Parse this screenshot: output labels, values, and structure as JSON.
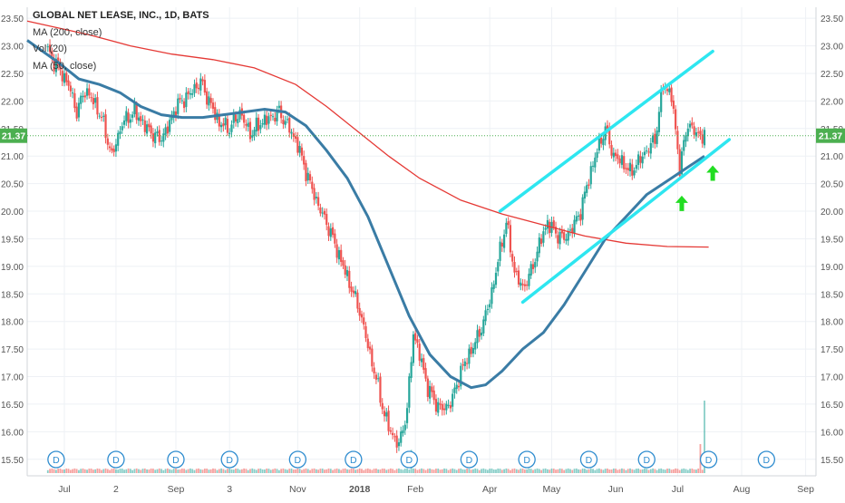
{
  "chart_data": {
    "type": "candlestick",
    "symbol_title": "GLOBAL NET LEASE, INC., 1D, BATS",
    "indicators": [
      "MA (200, close)",
      "Vol (20)",
      "MA (50, close)"
    ],
    "last_price": "21.37",
    "price_ticks": [
      "15.50",
      "16.00",
      "16.50",
      "17.00",
      "17.50",
      "18.00",
      "18.50",
      "19.00",
      "19.50",
      "20.00",
      "20.50",
      "21.00",
      "21.50",
      "22.00",
      "22.50",
      "23.00",
      "23.50"
    ],
    "time_labels": [
      "Jul",
      "2",
      "Sep",
      "3",
      "Nov",
      "2018",
      "Feb",
      "Apr",
      "May",
      "Jun",
      "Jul",
      "Aug",
      "Sep"
    ],
    "time_label_positions_days": [
      8,
      33,
      62,
      88,
      121,
      151,
      178,
      214,
      244,
      275,
      305,
      336,
      367
    ],
    "ylim": [
      15.2,
      23.7
    ],
    "xlim_days": [
      -10,
      372
    ],
    "price_anchors": [
      [
        0,
        22.9
      ],
      [
        5,
        22.6
      ],
      [
        10,
        22.3
      ],
      [
        14,
        21.8
      ],
      [
        18,
        22.2
      ],
      [
        22,
        22.0
      ],
      [
        26,
        21.7
      ],
      [
        31,
        21.0
      ],
      [
        36,
        21.6
      ],
      [
        42,
        21.8
      ],
      [
        48,
        21.5
      ],
      [
        54,
        21.3
      ],
      [
        58,
        21.5
      ],
      [
        62,
        21.9
      ],
      [
        68,
        22.1
      ],
      [
        74,
        22.35
      ],
      [
        78,
        22.0
      ],
      [
        83,
        21.6
      ],
      [
        88,
        21.5
      ],
      [
        93,
        21.8
      ],
      [
        98,
        21.4
      ],
      [
        103,
        21.6
      ],
      [
        108,
        21.7
      ],
      [
        112,
        21.8
      ],
      [
        117,
        21.5
      ],
      [
        121,
        21.2
      ],
      [
        126,
        20.6
      ],
      [
        131,
        20.1
      ],
      [
        136,
        19.7
      ],
      [
        141,
        19.2
      ],
      [
        146,
        18.7
      ],
      [
        151,
        18.2
      ],
      [
        156,
        17.4
      ],
      [
        160,
        16.8
      ],
      [
        163,
        16.3
      ],
      [
        166,
        16.0
      ],
      [
        170,
        15.75
      ],
      [
        174,
        16.4
      ],
      [
        177,
        17.8
      ],
      [
        180,
        17.4
      ],
      [
        184,
        16.8
      ],
      [
        188,
        16.5
      ],
      [
        192,
        16.4
      ],
      [
        196,
        16.6
      ],
      [
        200,
        17.1
      ],
      [
        204,
        17.4
      ],
      [
        208,
        17.7
      ],
      [
        212,
        18.1
      ],
      [
        216,
        18.7
      ],
      [
        219,
        19.3
      ],
      [
        222,
        19.8
      ],
      [
        226,
        18.9
      ],
      [
        230,
        18.6
      ],
      [
        234,
        18.9
      ],
      [
        238,
        19.4
      ],
      [
        242,
        19.8
      ],
      [
        246,
        19.6
      ],
      [
        250,
        19.5
      ],
      [
        254,
        19.7
      ],
      [
        258,
        20.0
      ],
      [
        262,
        20.6
      ],
      [
        266,
        21.1
      ],
      [
        270,
        21.5
      ],
      [
        274,
        21.0
      ],
      [
        278,
        20.9
      ],
      [
        282,
        20.7
      ],
      [
        286,
        20.9
      ],
      [
        290,
        21.1
      ],
      [
        294,
        21.3
      ],
      [
        298,
        22.3
      ],
      [
        302,
        22.1
      ],
      [
        306,
        20.8
      ],
      [
        310,
        21.6
      ],
      [
        314,
        21.4
      ],
      [
        318,
        21.37
      ]
    ],
    "ma200": [
      [
        -10,
        23.45
      ],
      [
        20,
        23.2
      ],
      [
        40,
        23.0
      ],
      [
        60,
        22.85
      ],
      [
        80,
        22.75
      ],
      [
        100,
        22.6
      ],
      [
        120,
        22.3
      ],
      [
        135,
        21.9
      ],
      [
        150,
        21.45
      ],
      [
        165,
        21.0
      ],
      [
        180,
        20.6
      ],
      [
        200,
        20.2
      ],
      [
        220,
        19.95
      ],
      [
        240,
        19.75
      ],
      [
        260,
        19.55
      ],
      [
        280,
        19.42
      ],
      [
        300,
        19.36
      ],
      [
        320,
        19.35
      ]
    ],
    "ma50": [
      [
        -10,
        23.1
      ],
      [
        5,
        22.7
      ],
      [
        15,
        22.4
      ],
      [
        25,
        22.3
      ],
      [
        35,
        22.15
      ],
      [
        45,
        21.9
      ],
      [
        55,
        21.75
      ],
      [
        65,
        21.7
      ],
      [
        75,
        21.7
      ],
      [
        85,
        21.75
      ],
      [
        95,
        21.8
      ],
      [
        105,
        21.85
      ],
      [
        115,
        21.8
      ],
      [
        125,
        21.55
      ],
      [
        135,
        21.1
      ],
      [
        145,
        20.6
      ],
      [
        155,
        19.9
      ],
      [
        165,
        19.0
      ],
      [
        175,
        18.1
      ],
      [
        185,
        17.4
      ],
      [
        195,
        17.0
      ],
      [
        205,
        16.8
      ],
      [
        212,
        16.85
      ],
      [
        220,
        17.1
      ],
      [
        230,
        17.5
      ],
      [
        240,
        17.8
      ],
      [
        250,
        18.3
      ],
      [
        260,
        18.9
      ],
      [
        270,
        19.5
      ],
      [
        280,
        19.9
      ],
      [
        290,
        20.3
      ],
      [
        300,
        20.55
      ],
      [
        310,
        20.8
      ],
      [
        318,
        21.0
      ]
    ],
    "trend_lines": [
      {
        "name": "upper-channel",
        "points": [
          [
            219,
            20.0
          ],
          [
            322,
            22.9
          ]
        ]
      },
      {
        "name": "lower-channel",
        "points": [
          [
            230,
            18.35
          ],
          [
            330,
            21.3
          ]
        ]
      }
    ],
    "dividend_markers": {
      "label": "D",
      "days": [
        4,
        33,
        62,
        88,
        121,
        148,
        175,
        204,
        232,
        262,
        290,
        320,
        348
      ]
    },
    "buy_arrows": [
      {
        "day": 307,
        "price": 20.15
      },
      {
        "day": 322,
        "price": 20.7
      }
    ],
    "volume": {
      "baseline": 1.0,
      "spikes": [
        [
          176,
          8
        ],
        [
          318,
          25
        ],
        [
          316,
          10
        ]
      ]
    },
    "colors": {
      "up": "#26a69a",
      "down": "#ef5350",
      "ma200": "#e53935",
      "ma50": "#3a7ca5",
      "trend": "#2ee6f0",
      "arrow": "#22dd22",
      "grid": "#eef1f5",
      "price_line": "#4caf50",
      "axis_text": "#555555"
    }
  }
}
